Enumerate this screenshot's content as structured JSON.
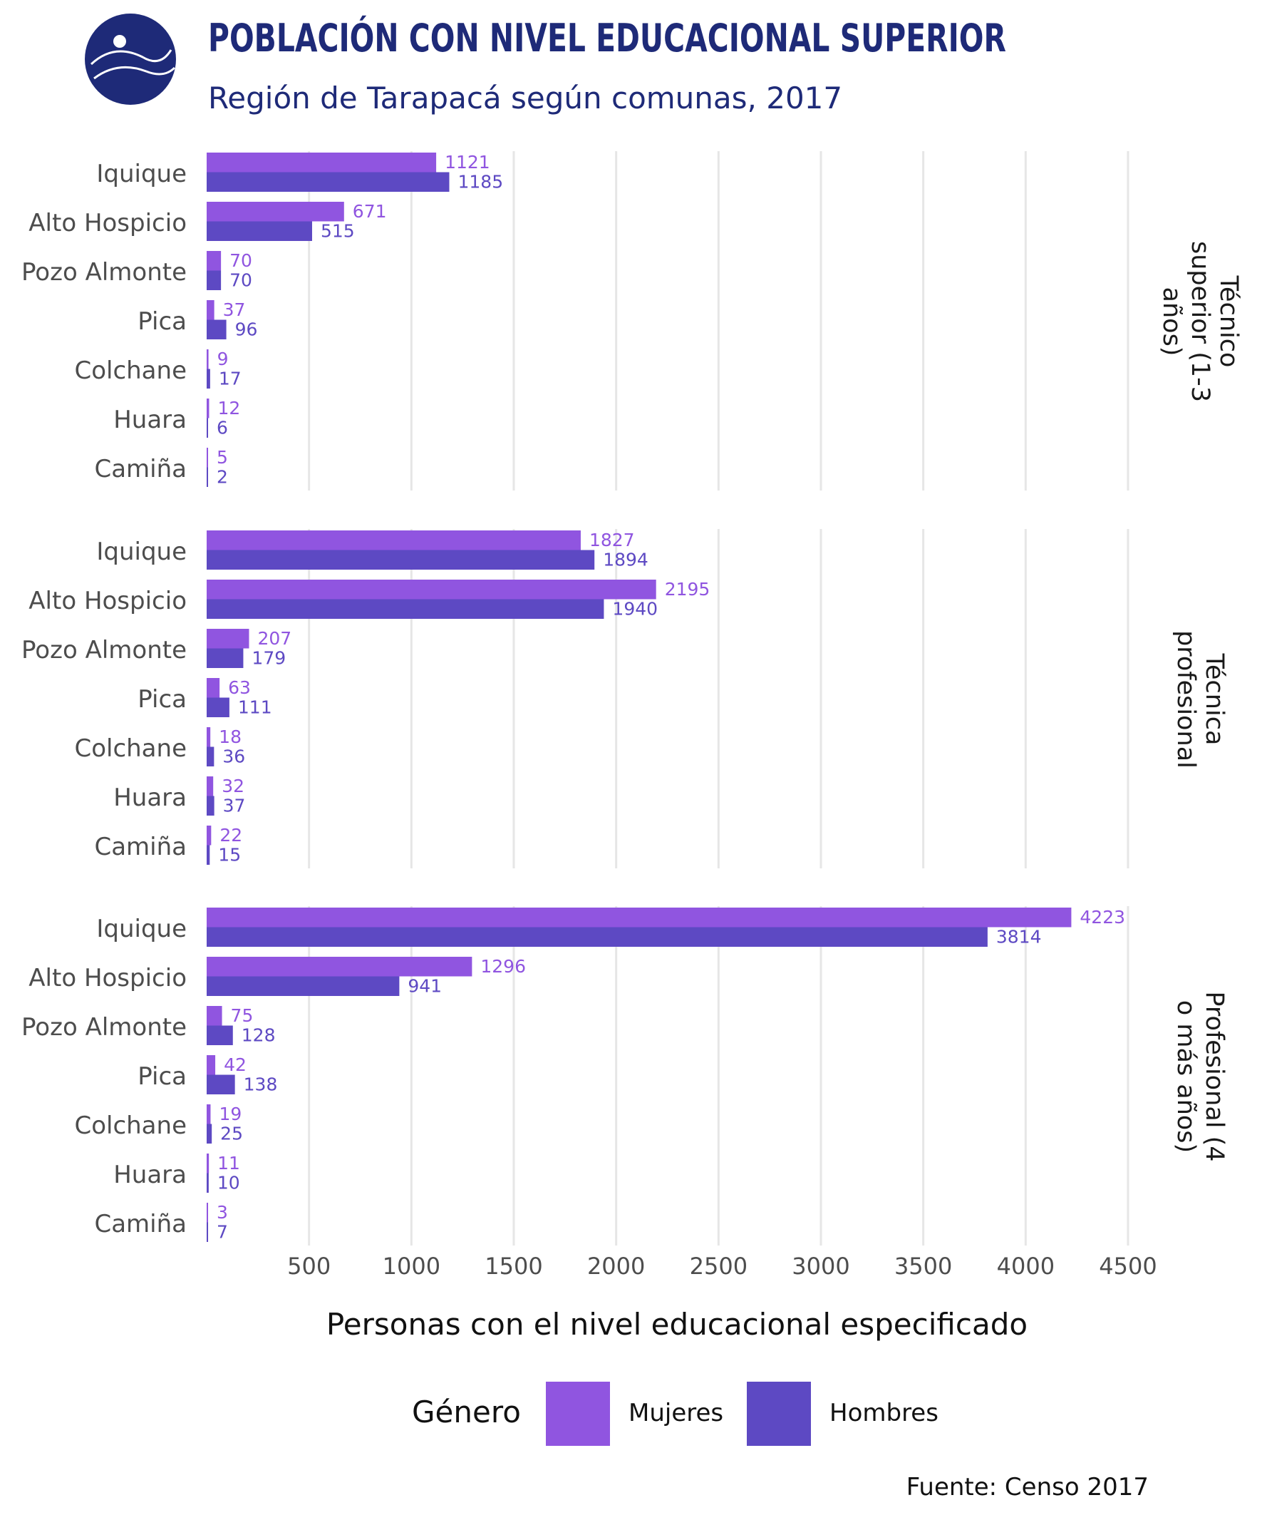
{
  "header": {
    "title": "POBLACIÓN CON NIVEL EDUCACIONAL SUPERIOR",
    "subtitle": "Región de Tarapacá según comunas, 2017",
    "logo_icon": "institute-logo-icon"
  },
  "footer": {
    "source": "Fuente: Censo 2017"
  },
  "chart_data": {
    "type": "bar",
    "orientation": "horizontal",
    "categories": [
      "Iquique",
      "Alto Hospicio",
      "Pozo Almonte",
      "Pica",
      "Colchane",
      "Huara",
      "Camiña"
    ],
    "xlabel": "Personas con el nivel educacional especificado",
    "xlim": [
      0,
      4500
    ],
    "xticks": [
      500,
      1000,
      1500,
      2000,
      2500,
      3000,
      3500,
      4000,
      4500
    ],
    "grid": "vertical",
    "legend": {
      "title": "Género",
      "placement": "bottom",
      "items": [
        {
          "name": "Mujeres",
          "color": "#9055e0"
        },
        {
          "name": "Hombres",
          "color": "#5d49c3"
        }
      ]
    },
    "panels": [
      {
        "label": "Técnico superior (1-3 años)",
        "label_lines": [
          "Técnico",
          "superior (1-3",
          "años)"
        ],
        "series": [
          {
            "name": "Mujeres",
            "values": [
              1121,
              671,
              70,
              37,
              9,
              12,
              5
            ]
          },
          {
            "name": "Hombres",
            "values": [
              1185,
              515,
              70,
              96,
              17,
              6,
              2
            ]
          }
        ]
      },
      {
        "label": "Técnica profesional",
        "label_lines": [
          "Técnica",
          "profesional"
        ],
        "series": [
          {
            "name": "Mujeres",
            "values": [
              1827,
              2195,
              207,
              63,
              18,
              32,
              22
            ]
          },
          {
            "name": "Hombres",
            "values": [
              1894,
              1940,
              179,
              111,
              36,
              37,
              15
            ]
          }
        ]
      },
      {
        "label": "Profesional (4 o más años)",
        "label_lines": [
          "Profesional (4",
          "o más años)"
        ],
        "series": [
          {
            "name": "Mujeres",
            "values": [
              4223,
              1296,
              75,
              42,
              19,
              11,
              3
            ]
          },
          {
            "name": "Hombres",
            "values": [
              3814,
              941,
              128,
              138,
              25,
              10,
              7
            ]
          }
        ]
      }
    ]
  }
}
